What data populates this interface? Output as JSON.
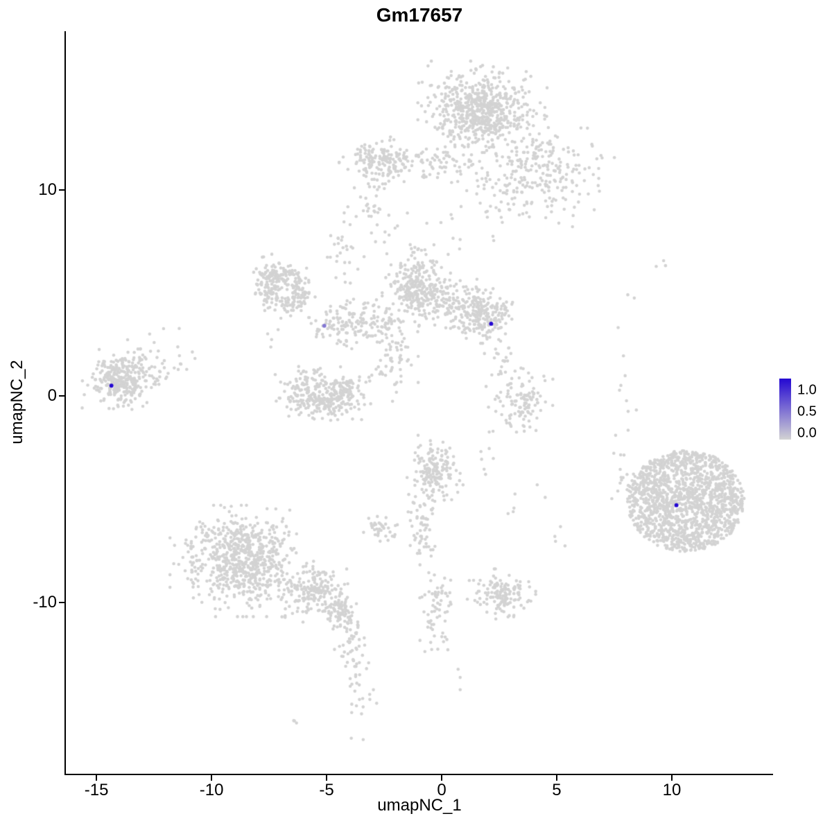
{
  "chart_data": {
    "type": "scatter",
    "title": "Gm17657",
    "xlabel": "umapNC_1",
    "ylabel": "umapNC_2",
    "xlim": [
      -16.33,
      14.4
    ],
    "ylim": [
      -18.35,
      17.68
    ],
    "x_ticks": [
      -15,
      -10,
      -5,
      0,
      5,
      10
    ],
    "y_ticks": [
      -10,
      0,
      10
    ],
    "grid": false,
    "legend_position": "right",
    "colors": {
      "low": "#d3d3d3",
      "high": "#2408d2"
    },
    "legend": {
      "tick_labels": [
        "1.0",
        "0.5",
        "0.0"
      ],
      "values": [
        1.0,
        0.5,
        0.0
      ]
    },
    "seed": 20240707,
    "clusters": [
      {
        "n": 650,
        "cx": 1.8,
        "cy": 13.8,
        "sdx": 1.05,
        "sdy": 0.9
      },
      {
        "n": 220,
        "cx": 4.4,
        "cy": 10.9,
        "sdx": 1.15,
        "sdy": 1.0
      },
      {
        "n": 150,
        "cx": -2.7,
        "cy": 11.4,
        "sdx": 0.65,
        "sdy": 0.5
      },
      {
        "n": 70,
        "cx": -0.3,
        "cy": 11.3,
        "sdx": 1.1,
        "sdy": 0.45
      },
      {
        "n": 45,
        "cx": 2.3,
        "cy": 9.7,
        "sdx": 0.7,
        "sdy": 0.9
      },
      {
        "n": 22,
        "cx": -3.0,
        "cy": 9.6,
        "sdx": 0.35,
        "sdy": 0.8
      },
      {
        "n": 10,
        "cx": -3.6,
        "cy": 8.8,
        "sdx": 0.6,
        "sdy": 0.5
      },
      {
        "n": 12,
        "cx": -1.7,
        "cy": 7.4,
        "sdx": 0.8,
        "sdy": 0.6
      },
      {
        "n": 6,
        "cx": 0.4,
        "cy": 7.9,
        "sdx": 0.5,
        "sdy": 0.5
      },
      {
        "n": 210,
        "shape": "ring",
        "cx": -6.8,
        "cy": 5.2,
        "r": 0.85,
        "jitter": 0.28
      },
      {
        "n": 70,
        "cx": -7.3,
        "cy": 5.8,
        "sdx": 0.4,
        "sdy": 0.4
      },
      {
        "n": 25,
        "cx": -4.35,
        "cy": 6.6,
        "sdx": 0.28,
        "sdy": 0.75
      },
      {
        "n": 240,
        "cx": -1.1,
        "cy": 5.3,
        "sdx": 0.55,
        "sdy": 0.75
      },
      {
        "n": 210,
        "cx": 1.8,
        "cy": 3.9,
        "sdx": 0.6,
        "sdy": 0.5
      },
      {
        "n": 130,
        "cx": 0.3,
        "cy": 4.7,
        "sdx": 0.9,
        "sdy": 0.45
      },
      {
        "n": 110,
        "cx": -3.2,
        "cy": 3.6,
        "sdx": 0.8,
        "sdy": 0.5
      },
      {
        "n": 55,
        "cx": -4.7,
        "cy": 3.5,
        "sdx": 0.5,
        "sdy": 0.4
      },
      {
        "n": 70,
        "cx": -2.1,
        "cy": 1.9,
        "sdx": 0.4,
        "sdy": 0.8
      },
      {
        "n": 130,
        "cx": -5.9,
        "cy": 0.3,
        "sdx": 0.5,
        "sdy": 0.55
      },
      {
        "n": 130,
        "cx": -4.3,
        "cy": 0.2,
        "sdx": 0.45,
        "sdy": 0.5
      },
      {
        "n": 80,
        "cx": -5.1,
        "cy": -0.35,
        "sdx": 0.55,
        "sdy": 0.3
      },
      {
        "n": 280,
        "cx": -14.0,
        "cy": 0.8,
        "sdx": 0.6,
        "sdy": 0.55
      },
      {
        "n": 60,
        "cx": -12.8,
        "cy": 1.1,
        "sdx": 0.7,
        "sdy": 0.8
      },
      {
        "n": 8,
        "cx": -11.6,
        "cy": 1.8,
        "sdx": 0.5,
        "sdy": 0.9
      },
      {
        "n": 170,
        "cx": -0.3,
        "cy": -3.8,
        "sdx": 0.5,
        "sdy": 0.7
      },
      {
        "n": 35,
        "cx": -2.6,
        "cy": -6.4,
        "sdx": 0.35,
        "sdy": 0.3
      },
      {
        "n": 55,
        "cx": -0.8,
        "cy": -6.6,
        "sdx": 0.3,
        "sdy": 0.9
      },
      {
        "n": 65,
        "cx": -0.2,
        "cy": -10.4,
        "sdx": 0.35,
        "sdy": 1.0
      },
      {
        "n": 700,
        "cx": -8.7,
        "cy": -8.0,
        "sdx": 1.15,
        "sdy": 1.0
      },
      {
        "n": 190,
        "cx": -5.6,
        "cy": -9.5,
        "sdx": 0.75,
        "sdy": 0.55
      },
      {
        "n": 80,
        "cx": -4.4,
        "cy": -10.5,
        "sdx": 0.35,
        "sdy": 0.4
      },
      {
        "n": 45,
        "cx": -3.9,
        "cy": -12.2,
        "sdx": 0.3,
        "sdy": 0.7
      },
      {
        "n": 20,
        "cx": -3.5,
        "cy": -14.5,
        "sdx": 0.25,
        "sdy": 0.8
      },
      {
        "n": 3,
        "cx": -6.3,
        "cy": -15.8,
        "sdx": 0.15,
        "sdy": 0.15
      },
      {
        "n": 140,
        "cx": 2.6,
        "cy": -9.6,
        "sdx": 0.55,
        "sdy": 0.45
      },
      {
        "n": 1500,
        "shape": "disk",
        "cx": 10.6,
        "cy": -5.1,
        "rx": 2.55,
        "ry": 2.45
      },
      {
        "n": 14,
        "cx": 7.9,
        "cy": -3.2,
        "sdx": 0.25,
        "sdy": 1.0
      },
      {
        "n": 10,
        "cx": 8.1,
        "cy": 0.9,
        "sdx": 0.25,
        "sdy": 1.1
      },
      {
        "n": 3,
        "cx": 9.4,
        "cy": 6.4,
        "sdx": 0.25,
        "sdy": 0.2
      },
      {
        "n": 2,
        "cx": 8.1,
        "cy": 4.8,
        "sdx": 0.1,
        "sdy": 0.1
      },
      {
        "n": 110,
        "cx": 3.4,
        "cy": -0.3,
        "sdx": 0.55,
        "sdy": 0.6
      },
      {
        "n": 25,
        "cx": 2.8,
        "cy": 2.0,
        "sdx": 0.5,
        "sdy": 0.8
      },
      {
        "n": 8,
        "cx": 2.0,
        "cy": -2.6,
        "sdx": 0.4,
        "sdy": 0.7
      },
      {
        "n": 6,
        "cx": 3.4,
        "cy": -5.2,
        "sdx": 0.5,
        "sdy": 0.4
      },
      {
        "n": 4,
        "cx": 5.0,
        "cy": -6.9,
        "sdx": 0.3,
        "sdy": 0.4
      },
      {
        "n": 4,
        "cx": -7.4,
        "cy": 2.9,
        "sdx": 0.3,
        "sdy": 0.4
      },
      {
        "n": 3,
        "cx": 0.9,
        "cy": -13.7,
        "sdx": 0.3,
        "sdy": 0.4
      }
    ],
    "expressed_cells": [
      {
        "x": -14.35,
        "y": 0.5,
        "value": 1.0
      },
      {
        "x": -5.1,
        "y": 3.4,
        "value": 0.45
      },
      {
        "x": 2.15,
        "y": 3.5,
        "value": 1.0
      },
      {
        "x": 10.2,
        "y": -5.3,
        "value": 1.0
      }
    ]
  }
}
